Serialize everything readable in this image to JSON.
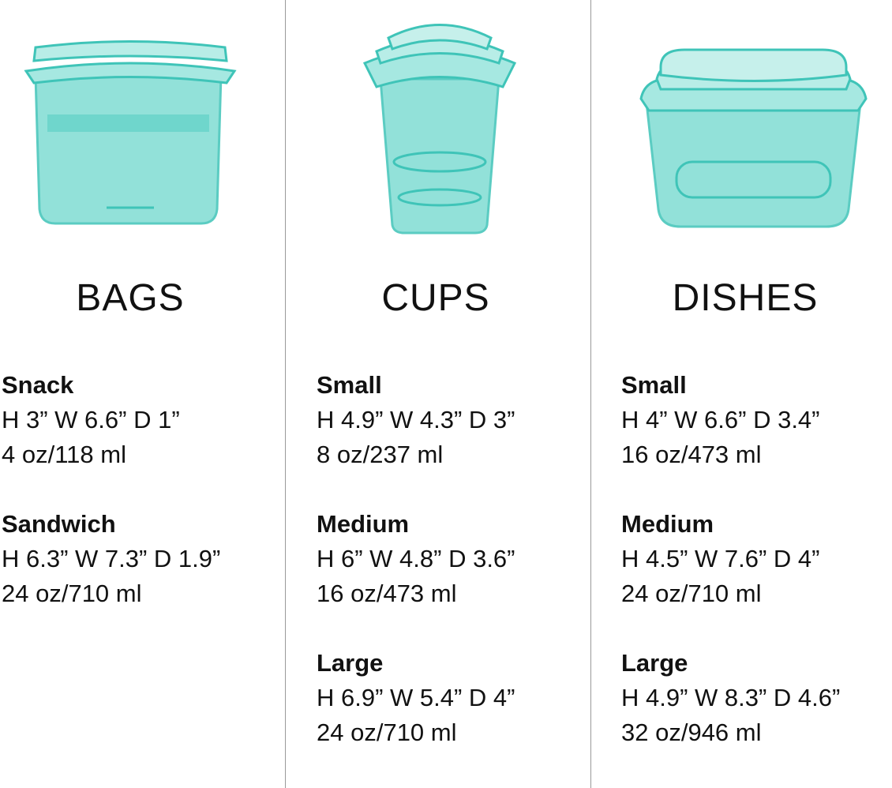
{
  "colors": {
    "container": "#5fd3c9",
    "divider": "#9a9a9a"
  },
  "columns": [
    {
      "title": "BAGS",
      "image": "bags-image",
      "items": [
        {
          "name": "Snack",
          "dims": "H 3”  W 6.6”  D 1”",
          "capacity": "4 oz/118 ml"
        },
        {
          "name": "Sandwich",
          "dims": "H 6.3”  W 7.3”  D 1.9”",
          "capacity": "24 oz/710 ml"
        }
      ]
    },
    {
      "title": "CUPS",
      "image": "cups-image",
      "items": [
        {
          "name": "Small",
          "dims": "H 4.9”  W 4.3”  D 3”",
          "capacity": "8 oz/237 ml"
        },
        {
          "name": "Medium",
          "dims": "H 6”  W 4.8”  D 3.6”",
          "capacity": "16 oz/473 ml"
        },
        {
          "name": "Large",
          "dims": "H 6.9”  W 5.4”  D 4”",
          "capacity": "24 oz/710 ml"
        }
      ]
    },
    {
      "title": "DISHES",
      "image": "dishes-image",
      "items": [
        {
          "name": "Small",
          "dims": "H 4”  W 6.6”  D 3.4”",
          "capacity": "16 oz/473 ml"
        },
        {
          "name": "Medium",
          "dims": "H 4.5”  W 7.6”  D 4”",
          "capacity": "24 oz/710 ml"
        },
        {
          "name": "Large",
          "dims": "H 4.9”  W 8.3”  D 4.6”",
          "capacity": "32 oz/946 ml"
        }
      ]
    }
  ]
}
